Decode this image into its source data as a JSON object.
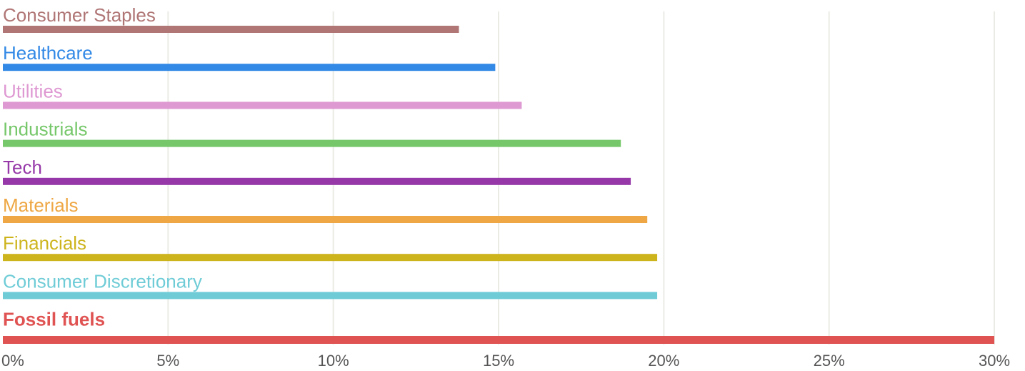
{
  "chart_data": {
    "type": "bar",
    "orientation": "horizontal",
    "categories": [
      "Consumer Staples",
      "Healthcare",
      "Utilities",
      "Industrials",
      "Tech",
      "Materials",
      "Financials",
      "Consumer Discretionary",
      "Fossil fuels"
    ],
    "values": [
      13.8,
      14.9,
      15.7,
      18.7,
      19.0,
      19.5,
      19.8,
      19.8,
      30.0
    ],
    "colors": [
      "#b07575",
      "#3289e6",
      "#de98d2",
      "#76c76a",
      "#9638a8",
      "#eea744",
      "#cdb41d",
      "#6fccd7",
      "#e05353"
    ],
    "highlight": "Fossil fuels",
    "xlim": [
      0,
      30
    ],
    "xticks": [
      0,
      5,
      10,
      15,
      20,
      25,
      30
    ],
    "xtick_labels": [
      "0%",
      "5%",
      "10%",
      "15%",
      "20%",
      "25%",
      "30%"
    ],
    "grid": true,
    "grid_color": "#ebebe6",
    "title": "",
    "xlabel": "",
    "ylabel": ""
  }
}
